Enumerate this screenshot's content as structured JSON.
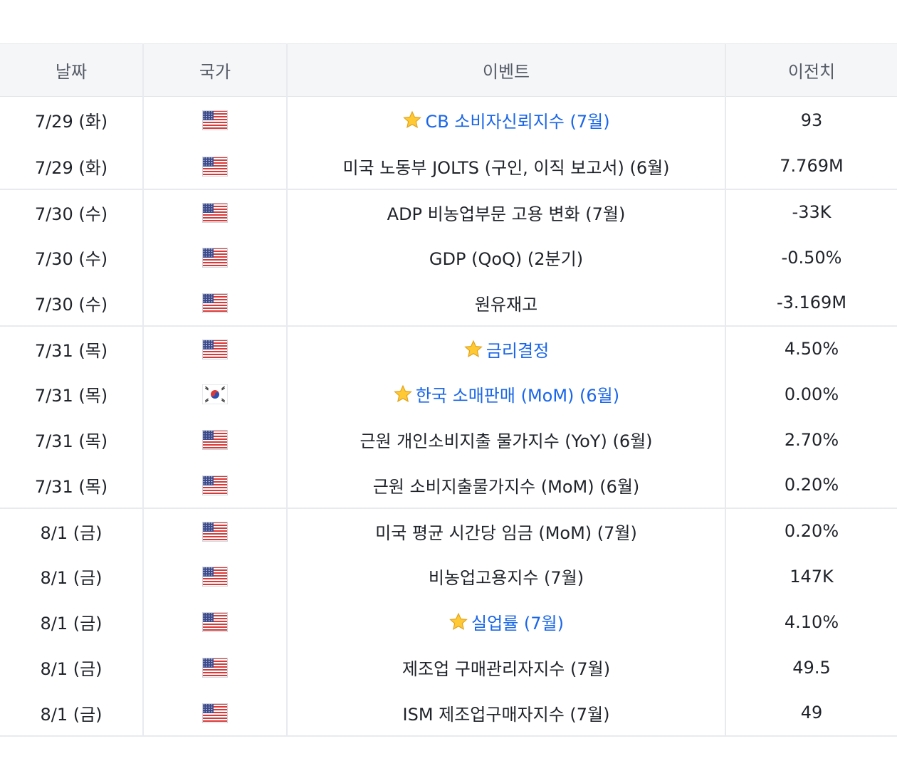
{
  "table": {
    "headers": {
      "date": "날짜",
      "country": "국가",
      "event": "이벤트",
      "previous": "이전치"
    },
    "rows": [
      {
        "date": "7/29 (화)",
        "country": "us-flag-icon",
        "event": "CB 소비자신뢰지수 (7월)",
        "important": true,
        "previous": "93"
      },
      {
        "date": "7/29 (화)",
        "country": "us-flag-icon",
        "event": "미국 노동부 JOLTS (구인, 이직 보고서) (6월)",
        "important": false,
        "previous": "7.769M"
      },
      {
        "date": "7/30 (수)",
        "country": "us-flag-icon",
        "event": "ADP 비농업부문 고용 변화 (7월)",
        "important": false,
        "previous": "-33K"
      },
      {
        "date": "7/30 (수)",
        "country": "us-flag-icon",
        "event": "GDP (QoQ) (2분기)",
        "important": false,
        "previous": "-0.50%"
      },
      {
        "date": "7/30 (수)",
        "country": "us-flag-icon",
        "event": "원유재고",
        "important": false,
        "previous": "-3.169M"
      },
      {
        "date": "7/31 (목)",
        "country": "us-flag-icon",
        "event": "금리결정",
        "important": true,
        "previous": "4.50%"
      },
      {
        "date": "7/31 (목)",
        "country": "kr-flag-icon",
        "event": "한국 소매판매 (MoM) (6월)",
        "important": true,
        "previous": "0.00%"
      },
      {
        "date": "7/31 (목)",
        "country": "us-flag-icon",
        "event": "근원 개인소비지출 물가지수 (YoY) (6월)",
        "important": false,
        "previous": "2.70%"
      },
      {
        "date": "7/31 (목)",
        "country": "us-flag-icon",
        "event": "근원 소비지출물가지수 (MoM) (6월)",
        "important": false,
        "previous": "0.20%"
      },
      {
        "date": "8/1 (금)",
        "country": "us-flag-icon",
        "event": "미국 평균 시간당 임금 (MoM) (7월)",
        "important": false,
        "previous": "0.20%"
      },
      {
        "date": "8/1 (금)",
        "country": "us-flag-icon",
        "event": "비농업고용지수 (7월)",
        "important": false,
        "previous": "147K"
      },
      {
        "date": "8/1 (금)",
        "country": "us-flag-icon",
        "event": "실업률 (7월)",
        "important": true,
        "previous": "4.10%"
      },
      {
        "date": "8/1 (금)",
        "country": "us-flag-icon",
        "event": "제조업 구매관리자지수 (7월)",
        "important": false,
        "previous": "49.5"
      },
      {
        "date": "8/1 (금)",
        "country": "us-flag-icon",
        "event": "ISM 제조업구매자지수 (7월)",
        "important": false,
        "previous": "49"
      }
    ]
  },
  "colors": {
    "important_event": "#1a66e8",
    "header_bg": "#f5f6f8",
    "text": "#1f2329",
    "divider": "#e8eaee"
  }
}
